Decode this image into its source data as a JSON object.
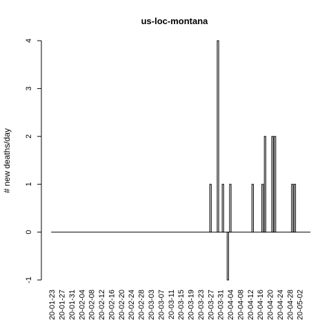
{
  "chart_data": {
    "type": "bar",
    "title": "us-loc-montana",
    "xlabel": "",
    "ylabel": "# new deaths/day",
    "ylim": [
      -1,
      4
    ],
    "yticks": [
      -1,
      0,
      1,
      2,
      3,
      4
    ],
    "start_date": "2020-01-23",
    "xtick_labels": [
      "20-01-23",
      "20-01-27",
      "20-01-31",
      "20-02-04",
      "20-02-08",
      "20-02-12",
      "20-02-16",
      "20-02-20",
      "20-02-24",
      "20-02-28",
      "20-03-03",
      "20-03-07",
      "20-03-11",
      "20-03-15",
      "20-03-19",
      "20-03-23",
      "20-03-27",
      "20-03-31",
      "20-04-04",
      "20-04-08",
      "20-04-12",
      "20-04-16",
      "20-04-20",
      "20-04-24",
      "20-04-28",
      "20-05-02"
    ],
    "values": [
      0,
      0,
      0,
      0,
      0,
      0,
      0,
      0,
      0,
      0,
      0,
      0,
      0,
      0,
      0,
      0,
      0,
      0,
      0,
      0,
      0,
      0,
      0,
      0,
      0,
      0,
      0,
      0,
      0,
      0,
      0,
      0,
      0,
      0,
      0,
      0,
      0,
      0,
      0,
      0,
      0,
      0,
      0,
      0,
      0,
      0,
      0,
      0,
      0,
      0,
      0,
      0,
      0,
      0,
      0,
      0,
      0,
      0,
      0,
      0,
      0,
      0,
      0,
      0,
      1,
      0,
      0,
      4,
      0,
      1,
      0,
      -1,
      1,
      0,
      0,
      0,
      0,
      0,
      0,
      0,
      0,
      1,
      0,
      0,
      0,
      1,
      2,
      0,
      0,
      2,
      2,
      0,
      0,
      0,
      0,
      0,
      0,
      1,
      1,
      0,
      0,
      0,
      0,
      0,
      0
    ]
  }
}
